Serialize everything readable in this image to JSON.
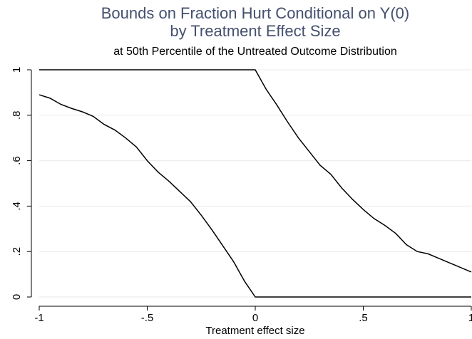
{
  "chart_data": {
    "type": "line",
    "title": [
      "Bounds on Fraction Hurt Conditional on Y(0)",
      "by Treatment Effect Size"
    ],
    "subtitle": "at 50th Percentile of the Untreated Outcome Distribution",
    "xlabel": "Treatment effect size",
    "x": [
      -1,
      -0.95,
      -0.9,
      -0.85,
      -0.8,
      -0.75,
      -0.7,
      -0.65,
      -0.6,
      -0.55,
      -0.5,
      -0.45,
      -0.4,
      -0.35,
      -0.3,
      -0.25,
      -0.2,
      -0.15,
      -0.1,
      -0.05,
      0,
      0.05,
      0.1,
      0.15,
      0.2,
      0.25,
      0.3,
      0.35,
      0.4,
      0.45,
      0.5,
      0.55,
      0.6,
      0.65,
      0.7,
      0.75,
      0.8,
      0.85,
      0.9,
      0.95,
      1
    ],
    "series": [
      {
        "color": "#000000",
        "values": [
          1,
          1,
          1,
          1,
          1,
          1,
          1,
          1,
          1,
          1,
          1,
          1,
          1,
          1,
          1,
          1,
          1,
          1,
          1,
          1,
          1,
          0.915,
          0.845,
          0.77,
          0.7,
          0.64,
          0.58,
          0.54,
          0.48,
          0.43,
          0.385,
          0.345,
          0.315,
          0.28,
          0.23,
          0.2,
          0.19,
          0.17,
          0.15,
          0.13,
          0.11
        ]
      },
      {
        "color": "#000000",
        "values": [
          0.89,
          0.875,
          0.848,
          0.83,
          0.815,
          0.795,
          0.76,
          0.735,
          0.7,
          0.66,
          0.6,
          0.55,
          0.51,
          0.465,
          0.42,
          0.36,
          0.295,
          0.225,
          0.155,
          0.07,
          0,
          0,
          0,
          0,
          0,
          0,
          0,
          0,
          0,
          0,
          0,
          0,
          0,
          0,
          0,
          0,
          0,
          0,
          0,
          0,
          0
        ]
      }
    ],
    "xlim": [
      -1,
      1
    ],
    "xticks": [
      -1,
      {
        "value": -0.5,
        "label": "-.5"
      },
      0,
      {
        "value": 0.5,
        "label": ".5"
      },
      1
    ],
    "ylim": [
      0,
      1
    ],
    "yticks": [
      0,
      {
        "value": 0.2,
        "label": ".2"
      },
      {
        "value": 0.4,
        "label": ".4"
      },
      {
        "value": 0.6,
        "label": ".6"
      },
      {
        "value": 0.8,
        "label": ".8"
      },
      1
    ],
    "grid": true
  }
}
